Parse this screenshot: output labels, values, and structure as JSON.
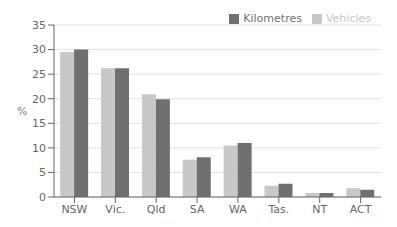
{
  "chart_data": {
    "type": "bar",
    "categories": [
      "NSW",
      "Vic.",
      "Qld",
      "SA",
      "WA",
      "Tas.",
      "NT",
      "ACT"
    ],
    "series": [
      {
        "name": "Vehicles",
        "color": "#c8c8c8",
        "values": [
          29.5,
          26.2,
          20.9,
          7.6,
          10.5,
          2.3,
          0.8,
          1.8
        ]
      },
      {
        "name": "Kilometres",
        "color": "#707070",
        "values": [
          30.0,
          26.2,
          19.9,
          8.1,
          11.0,
          2.7,
          0.8,
          1.5
        ]
      }
    ],
    "ylabel": "%",
    "ylim": [
      0,
      35
    ],
    "yticks": [
      0,
      5,
      10,
      15,
      20,
      25,
      30,
      35
    ],
    "grid": true,
    "legend": "upper right"
  }
}
